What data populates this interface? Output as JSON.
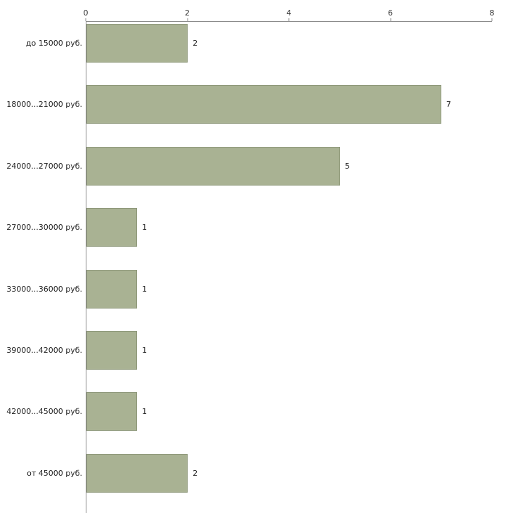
{
  "chart_data": {
    "type": "bar",
    "orientation": "horizontal",
    "title": "",
    "xlabel": "",
    "ylabel": "",
    "categories": [
      "до 15000 руб.",
      "18000...21000 руб.",
      "24000...27000 руб.",
      "27000...30000 руб.",
      "33000...36000 руб.",
      "39000...42000 руб.",
      "42000...45000 руб.",
      "от 45000 руб."
    ],
    "values": [
      2,
      7,
      5,
      1,
      1,
      1,
      1,
      2
    ],
    "xlim": [
      0,
      8
    ],
    "xticks": [
      0,
      2,
      4,
      6,
      8
    ],
    "grid": "off",
    "legend": "none",
    "bar_color": "#a9b293",
    "bar_border_color": "#8e987a",
    "axis_color": "#888888",
    "text_color": "#222222",
    "background_color": "#ffffff"
  }
}
